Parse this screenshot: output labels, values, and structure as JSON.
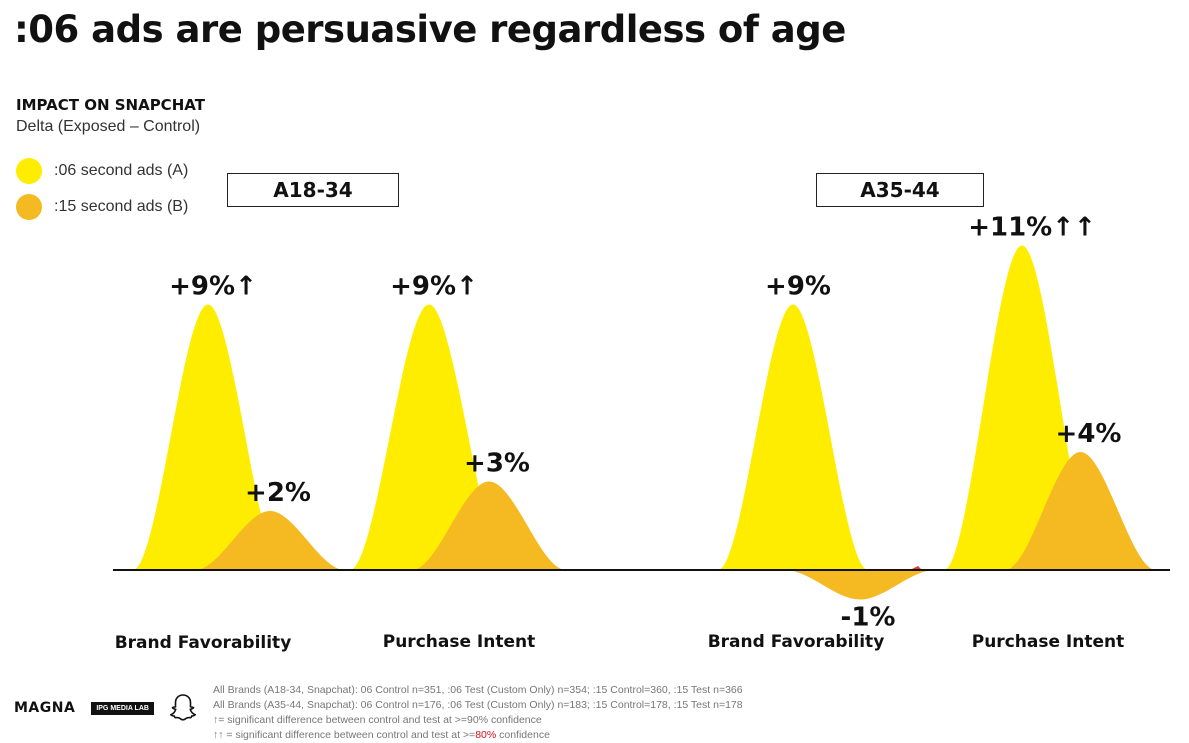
{
  "header": {
    "title": ":06 ads are persuasive regardless of age",
    "subhead": "IMPACT ON SNAPCHAT",
    "subtitle": "Delta (Exposed – Control)"
  },
  "legend": [
    {
      "label": ":06 second ads (A)",
      "color": "#FFED00"
    },
    {
      "label": ":15 second ads (B)",
      "color": "#F5BA22"
    }
  ],
  "chart_data": {
    "type": "area",
    "ylabel": "",
    "ylim": [
      -2,
      12
    ],
    "groups": [
      "A18-34",
      "A35-44"
    ],
    "categories": [
      "Brand Favorability",
      "Purchase Intent",
      "Brand Favorability",
      "Purchase Intent"
    ],
    "series": [
      {
        "name": ":06 second ads (A)",
        "color": "#FFED00",
        "values": [
          9,
          9,
          9,
          11
        ],
        "labels": [
          "+9%↑",
          "+9%↑",
          "+9%",
          "+11%↑↑"
        ]
      },
      {
        "name": ":15 second ads (B)",
        "color": "#F5BA22",
        "values": [
          2,
          3,
          -1,
          4
        ],
        "labels": [
          "+2%",
          "+3%",
          "-1%",
          "+4%"
        ]
      }
    ]
  },
  "footer": {
    "logo_magna": "MAGNA",
    "logo_ipg": "IPG MEDIA LAB",
    "logo_snap": "snapchat-ghost-icon",
    "notes": [
      "All Brands (A18-34, Snapchat): 06 Control n=351, :06 Test (Custom Only) n=354; :15 Control=360, :15 Test n=366",
      "All Brands (A35-44, Snapchat): 06 Control n=176, :06 Test (Custom Only) n=183; :15 Control=178, :15 Test n=178",
      "↑= significant difference between control and test at >=90% confidence"
    ],
    "note4_prefix": "↑↑ = significant difference between control and test at >=",
    "note4_highlight": "80%",
    "note4_suffix": " confidence"
  }
}
